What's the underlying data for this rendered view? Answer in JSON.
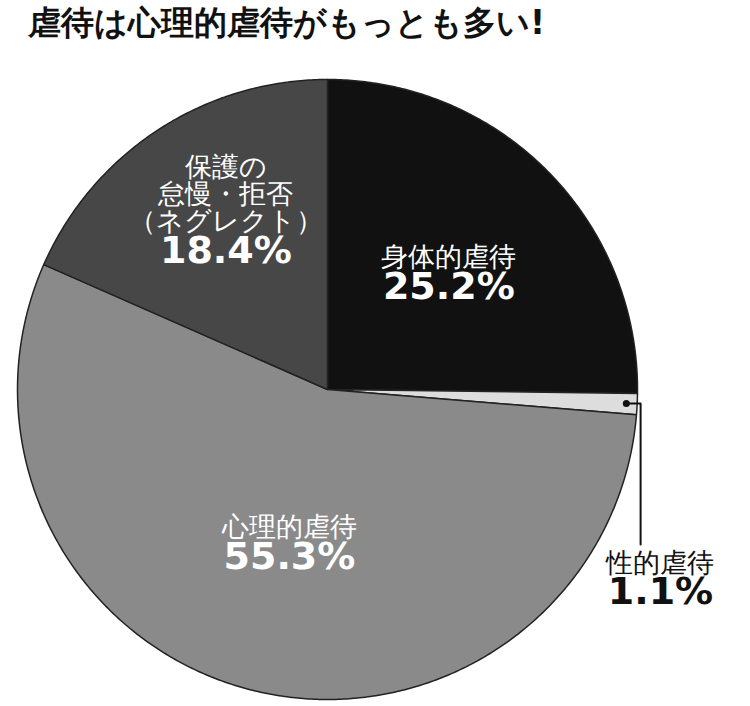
{
  "chart_data": {
    "type": "pie",
    "title": "虐待は心理的虐待がもっとも多い!",
    "categories": [
      "身体的虐待",
      "性的虐待",
      "心理的虐待",
      "保護の\n怠慢・拒否\n（ネグレクト）"
    ],
    "values": [
      25.2,
      1.1,
      55.3,
      18.4
    ],
    "value_labels": [
      "25.2%",
      "1.1%",
      "55.3%",
      "18.4%"
    ],
    "colors": [
      "#111111",
      "#dddddd",
      "#8a8a8a",
      "#474747"
    ],
    "data_labels": true
  }
}
